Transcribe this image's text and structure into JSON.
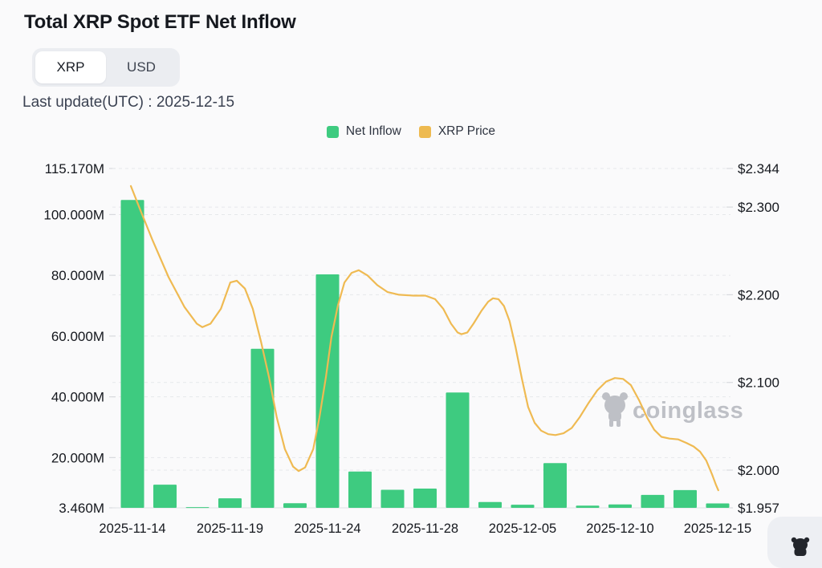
{
  "header": {
    "title": "Total XRP Spot ETF Net Inflow",
    "unit_toggle": {
      "options": [
        "XRP",
        "USD"
      ],
      "active": "XRP"
    },
    "last_update": "Last update(UTC) : 2025-12-15"
  },
  "legend": {
    "items": [
      {
        "label": "Net Inflow",
        "color": "#3ecb80"
      },
      {
        "label": "XRP Price",
        "color": "#eeba50"
      }
    ]
  },
  "watermark": {
    "text": "coinglass",
    "color": "#b4b7bd"
  },
  "colors": {
    "background": "#fafafb",
    "gridline": "#e6e8eb",
    "baseline": "#e7e9ec",
    "axis_text": "#15181e",
    "bar_green": "#3ecb80",
    "line_gold": "#efba52"
  },
  "chart_data": {
    "type": "bar+line",
    "title": "Total XRP Spot ETF Net Inflow",
    "grid": "dashed",
    "legend_position": "top-center",
    "x_labels": [
      "2025-11-14",
      "2025-11-19",
      "2025-11-24",
      "2025-11-28",
      "2025-12-05",
      "2025-12-10",
      "2025-12-15"
    ],
    "x_label_bar_indices": [
      0,
      3,
      6,
      9,
      12,
      15,
      18
    ],
    "bars": {
      "name": "Net Inflow",
      "unit": "M (XRP)",
      "color": "#3ecb80",
      "values": [
        104.8,
        11.1,
        3.7,
        6.6,
        55.8,
        5.0,
        80.3,
        15.4,
        9.4,
        9.8,
        41.4,
        5.4,
        4.5,
        18.2,
        4.2,
        4.6,
        7.7,
        9.3,
        4.9
      ]
    },
    "line": {
      "name": "XRP Price",
      "unit": "USD",
      "color": "#efba52",
      "points": [
        [
          -0.05,
          2.324
        ],
        [
          0.25,
          2.296
        ],
        [
          0.62,
          2.262
        ],
        [
          1.11,
          2.22
        ],
        [
          1.6,
          2.186
        ],
        [
          1.98,
          2.167
        ],
        [
          2.15,
          2.163
        ],
        [
          2.4,
          2.167
        ],
        [
          2.72,
          2.184
        ],
        [
          3.01,
          2.214
        ],
        [
          3.21,
          2.216
        ],
        [
          3.46,
          2.207
        ],
        [
          3.7,
          2.184
        ],
        [
          3.95,
          2.147
        ],
        [
          4.2,
          2.106
        ],
        [
          4.44,
          2.06
        ],
        [
          4.69,
          2.024
        ],
        [
          4.94,
          2.004
        ],
        [
          5.11,
          1.999
        ],
        [
          5.31,
          2.003
        ],
        [
          5.56,
          2.024
        ],
        [
          5.75,
          2.06
        ],
        [
          5.95,
          2.106
        ],
        [
          6.12,
          2.152
        ],
        [
          6.32,
          2.188
        ],
        [
          6.52,
          2.214
        ],
        [
          6.74,
          2.225
        ],
        [
          6.96,
          2.228
        ],
        [
          7.23,
          2.222
        ],
        [
          7.53,
          2.211
        ],
        [
          7.85,
          2.203
        ],
        [
          8.2,
          2.2
        ],
        [
          8.64,
          2.199
        ],
        [
          9.01,
          2.199
        ],
        [
          9.31,
          2.195
        ],
        [
          9.56,
          2.184
        ],
        [
          9.8,
          2.167
        ],
        [
          10.0,
          2.157
        ],
        [
          10.12,
          2.155
        ],
        [
          10.3,
          2.157
        ],
        [
          10.49,
          2.167
        ],
        [
          10.74,
          2.182
        ],
        [
          10.94,
          2.192
        ],
        [
          11.09,
          2.196
        ],
        [
          11.26,
          2.195
        ],
        [
          11.43,
          2.187
        ],
        [
          11.6,
          2.17
        ],
        [
          11.78,
          2.141
        ],
        [
          11.98,
          2.104
        ],
        [
          12.17,
          2.072
        ],
        [
          12.37,
          2.054
        ],
        [
          12.57,
          2.045
        ],
        [
          12.79,
          2.041
        ],
        [
          13.01,
          2.04
        ],
        [
          13.26,
          2.042
        ],
        [
          13.51,
          2.048
        ],
        [
          13.75,
          2.06
        ],
        [
          14.02,
          2.076
        ],
        [
          14.3,
          2.091
        ],
        [
          14.57,
          2.101
        ],
        [
          14.84,
          2.105
        ],
        [
          15.09,
          2.104
        ],
        [
          15.33,
          2.097
        ],
        [
          15.58,
          2.08
        ],
        [
          15.83,
          2.06
        ],
        [
          16.05,
          2.046
        ],
        [
          16.27,
          2.038
        ],
        [
          16.52,
          2.036
        ],
        [
          16.79,
          2.035
        ],
        [
          17.04,
          2.031
        ],
        [
          17.26,
          2.027
        ],
        [
          17.46,
          2.021
        ],
        [
          17.65,
          2.011
        ],
        [
          17.83,
          1.995
        ],
        [
          17.95,
          1.983
        ],
        [
          18.02,
          1.977
        ]
      ]
    },
    "left_axis": {
      "name": "Net Inflow",
      "min": 3.46,
      "max": 115.17,
      "ticks": [
        {
          "label": "115.170M",
          "value": 115.17
        },
        {
          "label": "100.000M",
          "value": 100
        },
        {
          "label": "80.000M",
          "value": 80
        },
        {
          "label": "60.000M",
          "value": 60
        },
        {
          "label": "40.000M",
          "value": 40
        },
        {
          "label": "20.000M",
          "value": 20
        },
        {
          "label": "3.460M",
          "value": 3.46
        }
      ]
    },
    "right_axis": {
      "name": "XRP Price",
      "min": 1.957,
      "max": 2.344,
      "ticks": [
        {
          "label": "$2.344",
          "value": 2.344
        },
        {
          "label": "$2.300",
          "value": 2.3
        },
        {
          "label": "$2.200",
          "value": 2.2
        },
        {
          "label": "$2.100",
          "value": 2.1
        },
        {
          "label": "$2.000",
          "value": 2.0
        },
        {
          "label": "$1.957",
          "value": 1.957
        }
      ]
    }
  }
}
